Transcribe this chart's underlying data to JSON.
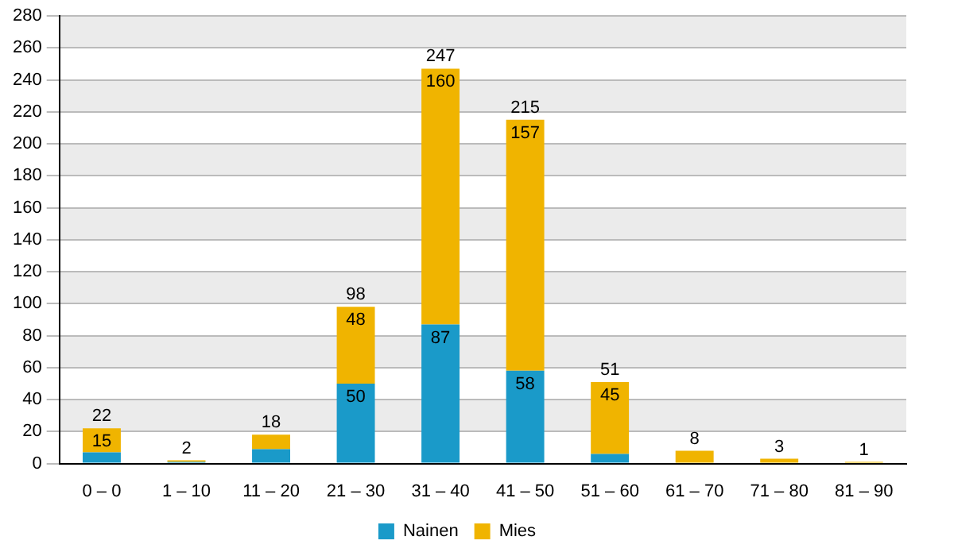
{
  "chart_data": {
    "type": "bar",
    "stacked": true,
    "categories": [
      "0 – 0",
      "1 – 10",
      "11 – 20",
      "21 – 30",
      "31 – 40",
      "41 – 50",
      "51 – 60",
      "61 – 70",
      "71 – 80",
      "81 – 90"
    ],
    "series": [
      {
        "name": "Nainen",
        "color": "#1a9ac9",
        "values": [
          7,
          1,
          9,
          50,
          87,
          58,
          6,
          0,
          0,
          0
        ],
        "value_labels": [
          null,
          null,
          null,
          "50",
          "87",
          "58",
          null,
          null,
          null,
          null
        ]
      },
      {
        "name": "Mies",
        "color": "#f0b400",
        "values": [
          15,
          1,
          9,
          48,
          160,
          157,
          45,
          8,
          3,
          1
        ],
        "value_labels": [
          "15",
          null,
          null,
          "48",
          "160",
          "157",
          "45",
          null,
          null,
          null
        ]
      }
    ],
    "totals": [
      "22",
      "2",
      "18",
      "98",
      "247",
      "215",
      "51",
      "8",
      "3",
      "1"
    ],
    "ylim": [
      0,
      280
    ],
    "yticks": [
      0,
      20,
      40,
      60,
      80,
      100,
      120,
      140,
      160,
      180,
      200,
      220,
      240,
      260,
      280
    ],
    "grid": "y",
    "legend": "bottom"
  }
}
